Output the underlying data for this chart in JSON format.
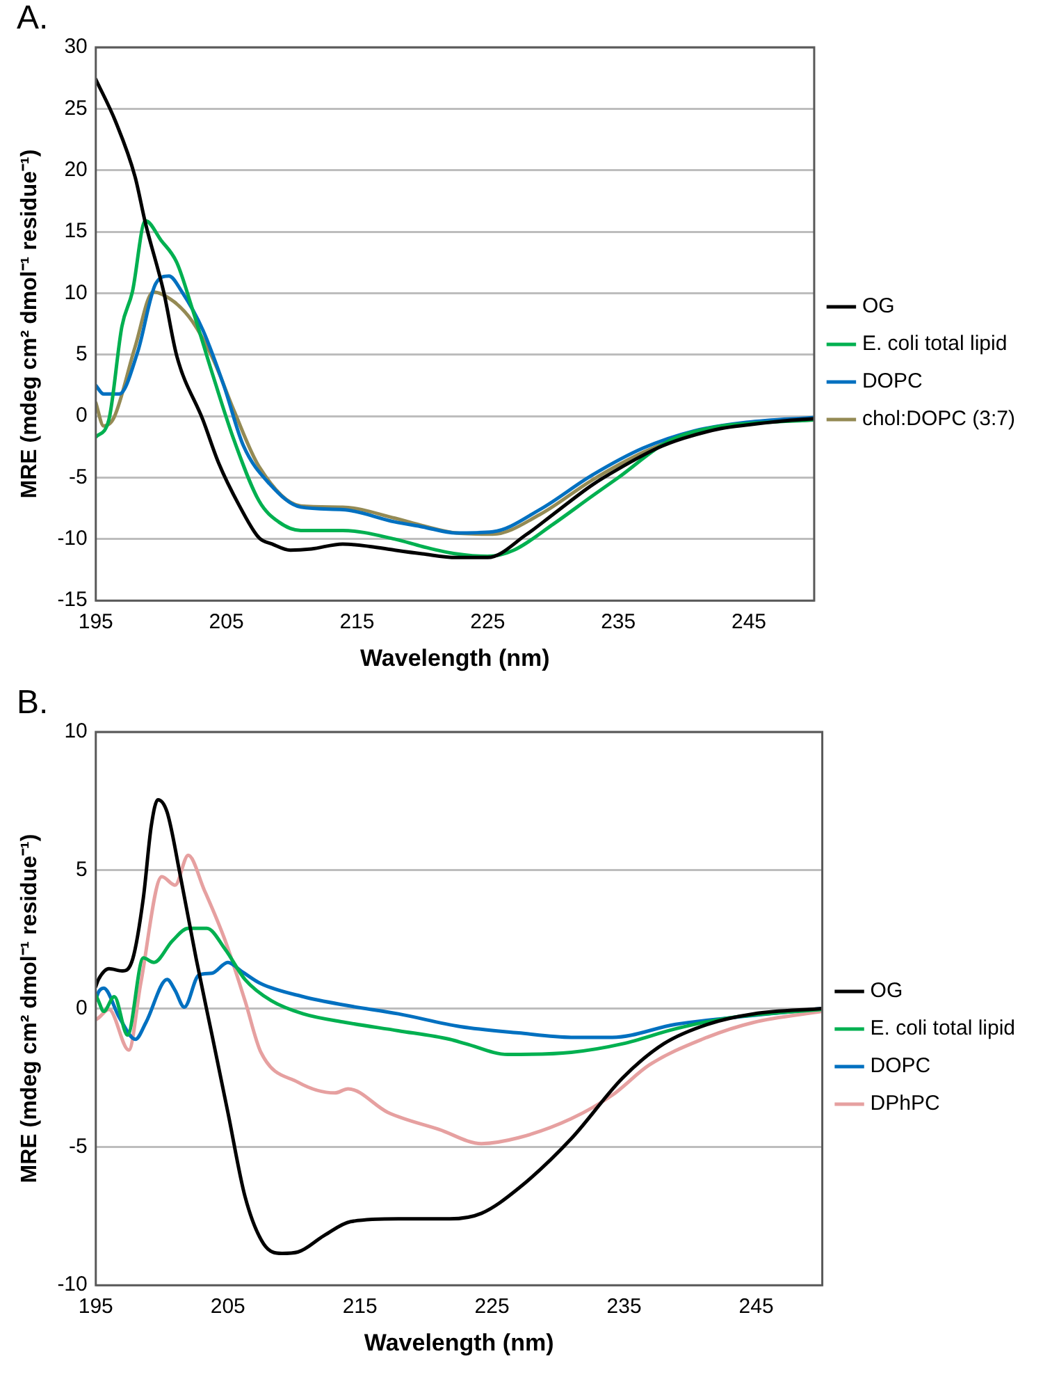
{
  "chart_data": [
    {
      "type": "line",
      "title": "A.",
      "xlabel": "Wavelength (nm)",
      "ylabel": "MRE (mdeg cm² dmol⁻¹ residue⁻¹)",
      "xlim": [
        195,
        250
      ],
      "xticks": [
        195,
        205,
        215,
        225,
        235,
        245
      ],
      "ylim": [
        -15,
        30
      ],
      "yticks": [
        -15,
        -10,
        -5,
        0,
        5,
        10,
        15,
        20,
        25,
        30
      ],
      "grid": "y",
      "legend": "right",
      "marker": "none",
      "line_style": "solid",
      "series": [
        {
          "name": "OG",
          "color": "#000000",
          "x": [
            195,
            196.5,
            198,
            198.8,
            200.2,
            201.2,
            203.2,
            204.4,
            206,
            207.5,
            208.5,
            209.9,
            211.5,
            213.9,
            216,
            217.9,
            220,
            222.6,
            225,
            228,
            230,
            233,
            235,
            238,
            240,
            242.9,
            245,
            247.5,
            250
          ],
          "values": [
            27.4,
            24,
            19.5,
            15.7,
            10.1,
            4.9,
            -0.3,
            -3.8,
            -7.3,
            -9.9,
            -10.4,
            -10.9,
            -10.8,
            -10.4,
            -10.6,
            -10.9,
            -11.2,
            -11.5,
            -11.5,
            -9.6,
            -8,
            -5.6,
            -4.3,
            -2.6,
            -1.8,
            -1,
            -0.7,
            -0.4,
            -0.2
          ]
        },
        {
          "name": "E. coli total lipid",
          "color": "#00b050",
          "x": [
            195,
            196,
            197,
            197.8,
            198.8,
            200,
            201.2,
            202.4,
            204,
            205.6,
            207.5,
            209,
            210.7,
            213.9,
            217.9,
            220,
            222.6,
            225,
            227,
            230,
            233,
            235,
            238.9,
            242.9,
            245,
            250
          ],
          "values": [
            -1.7,
            -0.3,
            7.3,
            10.1,
            15.9,
            14.3,
            12.5,
            8.7,
            3.2,
            -2,
            -6.9,
            -8.6,
            -9.3,
            -9.3,
            -10,
            -10.6,
            -11.2,
            -11.4,
            -10.9,
            -8.8,
            -6.5,
            -5,
            -2,
            -0.8,
            -0.6,
            -0.3
          ]
        },
        {
          "name": "DOPC",
          "color": "#0070c0",
          "x": [
            195,
            195.6,
            196.8,
            198.2,
            199.6,
            200.6,
            201.6,
            203.2,
            204.8,
            206.3,
            208.3,
            210.7,
            213.9,
            217.9,
            220,
            222.6,
            225.4,
            229,
            233,
            236.9,
            240.8,
            244.8,
            250
          ],
          "values": [
            2.5,
            1.8,
            1.8,
            5.2,
            10.8,
            11.4,
            10.1,
            7,
            2.5,
            -2.4,
            -5.5,
            -7.4,
            -7.6,
            -8.6,
            -9,
            -9.5,
            -9.4,
            -7.6,
            -4.8,
            -2.6,
            -1.2,
            -0.5,
            -0.1
          ]
        },
        {
          "name": "chol:DOPC (3:7)",
          "color": "#948a54",
          "x": [
            195,
            195.6,
            196.4,
            198,
            199.4,
            201,
            202.4,
            204,
            205.6,
            207.5,
            210.7,
            213.9,
            217.9,
            220,
            222.6,
            225.4,
            229,
            233,
            237,
            241,
            245,
            250
          ],
          "values": [
            1.1,
            -0.8,
            -0.1,
            5.6,
            10.1,
            9.3,
            7.7,
            4.6,
            0.4,
            -4.1,
            -7.3,
            -7.4,
            -8.3,
            -8.9,
            -9.5,
            -9.6,
            -8,
            -5.2,
            -2.9,
            -1.3,
            -0.6,
            -0.3
          ]
        }
      ]
    },
    {
      "type": "line",
      "title": "B.",
      "xlabel": "Wavelength (nm)",
      "ylabel": "MRE (mdeg cm² dmol⁻¹ residue⁻¹)",
      "xlim": [
        195,
        250
      ],
      "xticks": [
        195,
        205,
        215,
        225,
        235,
        245
      ],
      "ylim": [
        -10,
        10
      ],
      "yticks": [
        -10,
        -5,
        0,
        5,
        10
      ],
      "grid": "y",
      "legend": "right",
      "marker": "none",
      "line_style": "solid",
      "series": [
        {
          "name": "OG",
          "color": "#000000",
          "x": [
            195,
            195.2,
            196,
            197,
            197.8,
            198.6,
            199.2,
            199.7,
            200.4,
            201.4,
            202.6,
            203.8,
            205,
            206.3,
            207.7,
            209.1,
            210.3,
            212.3,
            214.3,
            217.9,
            219,
            221.8,
            224.2,
            227,
            231,
            234.9,
            238,
            241.3,
            244.8,
            250
          ],
          "values": [
            0.8,
            1.05,
            1.44,
            1.36,
            1.8,
            4,
            6.6,
            7.55,
            7.1,
            4.8,
            1.8,
            -0.96,
            -3.75,
            -6.8,
            -8.5,
            -8.85,
            -8.8,
            -8.2,
            -7.7,
            -7.6,
            -7.6,
            -7.6,
            -7.4,
            -6.5,
            -4.7,
            -2.5,
            -1.27,
            -0.57,
            -0.19,
            0
          ]
        },
        {
          "name": "E. coli total lipid",
          "color": "#00b050",
          "x": [
            195,
            195.2,
            195.6,
            196.4,
            197.4,
            198.6,
            199.4,
            200.8,
            202,
            203.4,
            204.8,
            206.3,
            208.3,
            210.7,
            213.9,
            217.9,
            221.8,
            223,
            226.2,
            231,
            234.9,
            238.9,
            242.9,
            250
          ],
          "values": [
            0.5,
            0.28,
            -0.1,
            0.43,
            -0.96,
            1.83,
            1.67,
            2.45,
            2.9,
            2.9,
            2.14,
            1.05,
            0.28,
            -0.19,
            -0.5,
            -0.8,
            -1.11,
            -1.27,
            -1.66,
            -1.58,
            -1.27,
            -0.73,
            -0.34,
            -0.03
          ]
        },
        {
          "name": "DOPC",
          "color": "#0070c0",
          "x": [
            195,
            195.2,
            195.6,
            196.8,
            198,
            198.8,
            200.4,
            201,
            201.7,
            202.8,
            203.8,
            205,
            206,
            207.5,
            210.7,
            213.9,
            217.9,
            222.6,
            227,
            231,
            234.1,
            238.9,
            242.9,
            250
          ],
          "values": [
            0.3,
            0.59,
            0.74,
            -0.34,
            -1.11,
            -0.5,
            1.05,
            0.66,
            0.05,
            1.21,
            1.28,
            1.67,
            1.36,
            0.9,
            0.43,
            0.12,
            -0.19,
            -0.65,
            -0.88,
            -1.04,
            -1.04,
            -0.57,
            -0.34,
            0
          ]
        },
        {
          "name": "DPhPC",
          "color": "#e6a0a0",
          "x": [
            195,
            195.2,
            196,
            197.5,
            198.4,
            200,
            201,
            202,
            203.2,
            204.8,
            206.3,
            207.5,
            210.3,
            213.1,
            214.1,
            217.1,
            221,
            224.2,
            227,
            231,
            234.1,
            236.9,
            240.9,
            244.8,
            250
          ],
          "values": [
            -0.4,
            -0.34,
            -0.03,
            -1.5,
            0.9,
            4.77,
            4.46,
            5.54,
            4.3,
            2.45,
            0.28,
            -1.58,
            -2.66,
            -3.05,
            -2.9,
            -3.75,
            -4.37,
            -4.88,
            -4.67,
            -3.98,
            -3.13,
            -2.04,
            -1.11,
            -0.5,
            -0.1
          ]
        }
      ]
    }
  ]
}
